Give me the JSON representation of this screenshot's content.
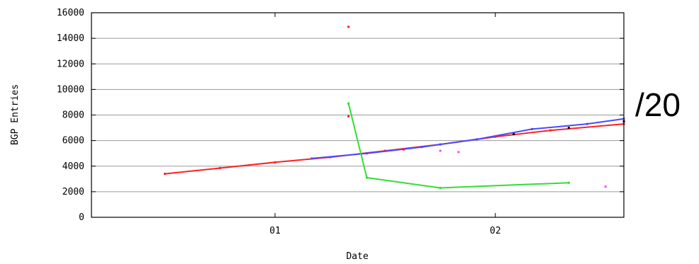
{
  "chart_data": {
    "type": "scatter",
    "title": "",
    "xlabel": "Date",
    "ylabel": "BGP Entries",
    "side_label": "/20",
    "ylim": [
      0,
      16000
    ],
    "yticks": [
      "16000",
      "14000",
      "12000",
      "10000",
      "8000",
      "6000",
      "4000",
      "2000",
      "0"
    ],
    "ytick_values": [
      16000,
      14000,
      12000,
      10000,
      8000,
      6000,
      4000,
      2000,
      0
    ],
    "xlim": [
      "2000-03",
      "2002-08"
    ],
    "xticks": [
      "01",
      "02"
    ],
    "xtick_values": [
      "2001-01",
      "2002-01"
    ],
    "grid": "horizontal",
    "legend": "none",
    "series": [
      {
        "color": "#ff2020",
        "x": [
          "2000-07",
          "2000-10",
          "2001-01",
          "2001-04",
          "2001-07",
          "2001-10",
          "2002-01",
          "2002-04",
          "2002-08"
        ],
        "values": [
          3400,
          3850,
          4300,
          4700,
          5200,
          5700,
          6300,
          6800,
          7300
        ]
      },
      {
        "color": "#4a4aff",
        "x": [
          "2001-03",
          "2001-06",
          "2001-09",
          "2001-12",
          "2002-03",
          "2002-06",
          "2002-08"
        ],
        "values": [
          4600,
          5000,
          5500,
          6100,
          6900,
          7300,
          7700
        ]
      },
      {
        "color": "#000000",
        "x": [
          "2002-02",
          "2002-05",
          "2002-08"
        ],
        "values": [
          6500,
          7000,
          7500
        ]
      },
      {
        "color": "#ff2020",
        "x": [
          "2001-05",
          "2001-05",
          "2001-08"
        ],
        "values": [
          14900,
          7900,
          5300
        ]
      },
      {
        "color": "#33dd33",
        "x": [
          "2001-05",
          "2001-06",
          "2001-10",
          "2002-05"
        ],
        "values": [
          8900,
          3100,
          2300,
          2700
        ]
      },
      {
        "color": "#ff44ff",
        "x": [
          "2001-10",
          "2001-11",
          "2002-07"
        ],
        "values": [
          5200,
          5100,
          2400
        ]
      }
    ]
  }
}
